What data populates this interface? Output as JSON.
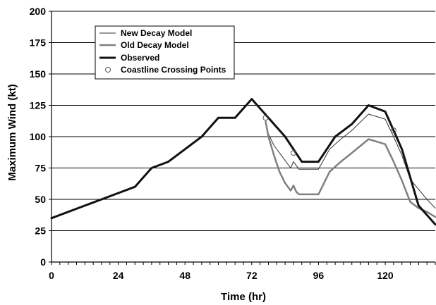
{
  "chart_data": {
    "type": "line",
    "title": "",
    "xlabel": "Time (hr)",
    "ylabel": "Maximum Wind (kt)",
    "xlim": [
      0,
      138
    ],
    "ylim": [
      0,
      200
    ],
    "xticks": [
      0,
      24,
      48,
      72,
      96,
      120
    ],
    "yticks": [
      0,
      25,
      50,
      75,
      100,
      125,
      150,
      175,
      200
    ],
    "xtick_labels": [
      "0",
      "24",
      "48",
      "72",
      "96",
      "120"
    ],
    "ytick_labels": [
      "0",
      "25",
      "50",
      "75",
      "100",
      "125",
      "150",
      "175",
      "200"
    ],
    "grid": "horizontal",
    "legend_position": "top-left",
    "series": [
      {
        "name": "New Decay Model",
        "color": "#333333",
        "x": [
          77,
          78,
          80,
          82,
          84,
          86,
          87,
          88,
          89,
          90,
          92,
          94,
          96,
          100,
          104,
          108,
          114,
          120,
          123,
          126,
          129,
          132,
          135,
          138
        ],
        "y": [
          112,
          102,
          93,
          87,
          81,
          75,
          80,
          77,
          74,
          74,
          74,
          74,
          74,
          90,
          98,
          105,
          118,
          114,
          100,
          85,
          66,
          58,
          50,
          43
        ]
      },
      {
        "name": "Old Decay Model",
        "color": "#808080",
        "x": [
          77,
          78,
          80,
          82,
          84,
          86,
          87,
          88,
          89,
          90,
          92,
          94,
          96,
          100,
          104,
          108,
          114,
          120,
          123,
          126,
          129,
          132,
          135,
          138
        ],
        "y": [
          112,
          100,
          85,
          72,
          63,
          57,
          61,
          56,
          54,
          54,
          54,
          54,
          54,
          72,
          80,
          87,
          98,
          94,
          80,
          65,
          48,
          43,
          40,
          36
        ]
      },
      {
        "name": "Observed",
        "color": "#111111",
        "x": [
          0,
          12,
          24,
          30,
          36,
          42,
          48,
          54,
          60,
          66,
          72,
          78,
          84,
          90,
          96,
          102,
          108,
          114,
          120,
          126,
          132,
          138
        ],
        "y": [
          35,
          45,
          55,
          60,
          75,
          80,
          90,
          100,
          115,
          115,
          130,
          115,
          100,
          80,
          80,
          100,
          110,
          125,
          120,
          90,
          45,
          30
        ]
      },
      {
        "name": "Coastline Crossing Points",
        "color": "#555555",
        "marker": "open-circle",
        "x": [
          77,
          87,
          123
        ],
        "y": [
          115,
          87,
          105
        ]
      }
    ]
  }
}
